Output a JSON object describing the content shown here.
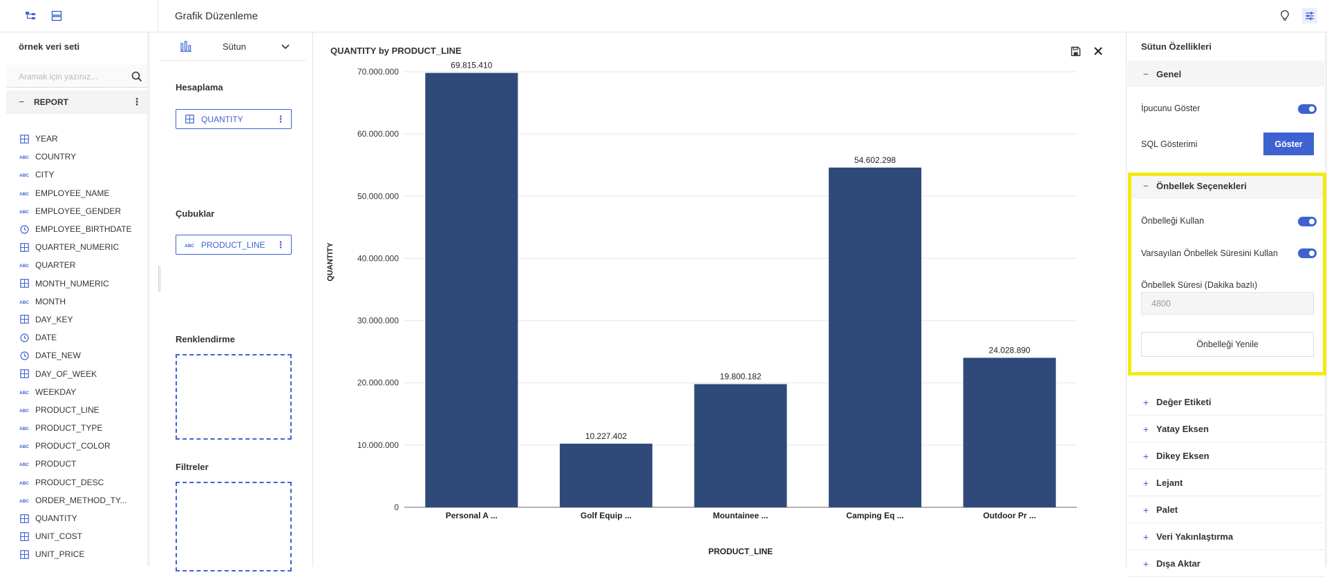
{
  "header": {
    "title": "Grafik Düzenleme"
  },
  "sidebar": {
    "dataset_title": "örnek veri seti",
    "search_placeholder": "Aramak için yazınız...",
    "report_label": "REPORT",
    "fields": [
      {
        "name": "YEAR",
        "type": "number"
      },
      {
        "name": "COUNTRY",
        "type": "text"
      },
      {
        "name": "CITY",
        "type": "text"
      },
      {
        "name": "EMPLOYEE_NAME",
        "type": "text"
      },
      {
        "name": "EMPLOYEE_GENDER",
        "type": "text"
      },
      {
        "name": "EMPLOYEE_BIRTHDATE",
        "type": "date"
      },
      {
        "name": "QUARTER_NUMERIC",
        "type": "number"
      },
      {
        "name": "QUARTER",
        "type": "text"
      },
      {
        "name": "MONTH_NUMERIC",
        "type": "number"
      },
      {
        "name": "MONTH",
        "type": "text"
      },
      {
        "name": "DAY_KEY",
        "type": "number"
      },
      {
        "name": "DATE",
        "type": "date"
      },
      {
        "name": "DATE_NEW",
        "type": "date"
      },
      {
        "name": "DAY_OF_WEEK",
        "type": "number"
      },
      {
        "name": "WEEKDAY",
        "type": "text"
      },
      {
        "name": "PRODUCT_LINE",
        "type": "text"
      },
      {
        "name": "PRODUCT_TYPE",
        "type": "text"
      },
      {
        "name": "PRODUCT_COLOR",
        "type": "text"
      },
      {
        "name": "PRODUCT",
        "type": "text"
      },
      {
        "name": "PRODUCT_DESC",
        "type": "text"
      },
      {
        "name": "ORDER_METHOD_TY...",
        "type": "text"
      },
      {
        "name": "QUANTITY",
        "type": "number"
      },
      {
        "name": "UNIT_COST",
        "type": "number"
      },
      {
        "name": "UNIT_PRICE",
        "type": "number"
      }
    ]
  },
  "builder": {
    "chart_type_label": "Sütun",
    "calc_label": "Hesaplama",
    "calc_field": "QUANTITY",
    "bars_label": "Çubuklar",
    "bars_field": "PRODUCT_LINE",
    "color_label": "Renklendirme",
    "filter_label": "Filtreler"
  },
  "chart_data": {
    "type": "bar",
    "title": "QUANTITY by PRODUCT_LINE",
    "xlabel": "PRODUCT_LINE",
    "ylabel": "QUANTITY",
    "categories": [
      "Personal A ...",
      "Golf Equip ...",
      "Mountainee ...",
      "Camping Eq ...",
      "Outdoor Pr ..."
    ],
    "values": [
      69815410,
      10227402,
      19800182,
      54602298,
      24028890
    ],
    "value_labels": [
      "69.815.410",
      "10.227.402",
      "19.800.182",
      "54.602.298",
      "24.028.890"
    ],
    "yticks": [
      0,
      10000000,
      20000000,
      30000000,
      40000000,
      50000000,
      60000000,
      70000000
    ],
    "ytick_labels": [
      "0",
      "10.000.000",
      "20.000.000",
      "30.000.000",
      "40.000.000",
      "50.000.000",
      "60.000.000",
      "70.000.000"
    ],
    "ylim": [
      0,
      70000000
    ],
    "grid": true,
    "bar_color": "#2f4a7a"
  },
  "props": {
    "title": "Sütun Özellikleri",
    "general_label": "Genel",
    "tooltip_label": "İpucunu Göster",
    "sql_label": "SQL Gösterimi",
    "show_button": "Göster",
    "cache_label": "Önbellek Seçenekleri",
    "use_cache_label": "Önbelleği Kullan",
    "default_cache_label": "Varsayılan Önbellek Süresini Kullan",
    "cache_duration_label": "Önbellek Süresi (Dakika bazlı)",
    "cache_duration_value": "4800",
    "refresh_button": "Önbelleği Yenile",
    "sections": [
      "Değer Etiketi",
      "Yatay Eksen",
      "Dikey Eksen",
      "Lejant",
      "Palet",
      "Veri Yakınlaştırma",
      "Dışa Aktar"
    ]
  },
  "colors": {
    "accent": "#3d62d2",
    "bar": "#2f4a7a",
    "highlight": "#f2ea14"
  }
}
